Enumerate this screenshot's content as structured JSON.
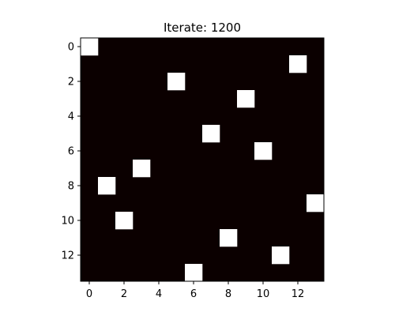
{
  "chart_data": {
    "type": "heatmap",
    "title": "Iterate: 1200",
    "xlabel": "",
    "ylabel": "",
    "grid": false,
    "rows": 14,
    "cols": 14,
    "xlim": [
      -0.5,
      13.5
    ],
    "ylim": [
      13.5,
      -0.5
    ],
    "xticks": [
      0,
      2,
      4,
      6,
      8,
      10,
      12
    ],
    "yticks": [
      0,
      2,
      4,
      6,
      8,
      10,
      12
    ],
    "colormap": "hot",
    "background_value": 0,
    "background_color": "#0b0000",
    "on_color": "#ffffff",
    "on_cells": [
      {
        "row": 0,
        "col": 0
      },
      {
        "row": 1,
        "col": 12
      },
      {
        "row": 2,
        "col": 5
      },
      {
        "row": 3,
        "col": 9
      },
      {
        "row": 5,
        "col": 7
      },
      {
        "row": 6,
        "col": 10
      },
      {
        "row": 7,
        "col": 3
      },
      {
        "row": 8,
        "col": 1
      },
      {
        "row": 9,
        "col": 13
      },
      {
        "row": 10,
        "col": 2
      },
      {
        "row": 11,
        "col": 8
      },
      {
        "row": 12,
        "col": 11
      },
      {
        "row": 13,
        "col": 6
      }
    ]
  }
}
